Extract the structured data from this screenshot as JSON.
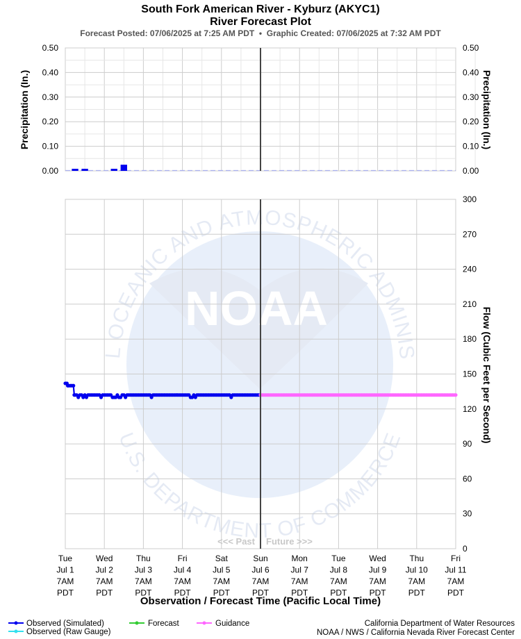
{
  "header": {
    "title_line1": "South Fork American River - Kyburz (AKYC1)",
    "title_line2": "River Forecast Plot",
    "subtitle": "Forecast Posted: 07/06/2025 at 7:25 AM PDT  •  Graphic Created: 07/06/2025 at 7:32 AM PDT"
  },
  "watermark": {
    "logo_text": "NOAA",
    "ring_top": "NATIONAL OCEANIC AND ATMOSPHERIC ADMINISTRATION",
    "ring_bottom": "U.S. DEPARTMENT OF COMMERCE"
  },
  "past_future": {
    "past": "<<< Past",
    "future": "Future >>>"
  },
  "legend": {
    "observed_simulated": "Observed (Simulated)",
    "observed_raw": "Observed (Raw Gauge)",
    "forecast": "Forecast",
    "guidance": "Guidance"
  },
  "credits": {
    "line1": "California Department of Water Resources",
    "line2": "NOAA / NWS / California Nevada River Forecast Center"
  },
  "colors": {
    "observed_simulated": "#0000ee",
    "observed_raw": "#33e0ee",
    "forecast": "#33cc33",
    "guidance": "#ff66ff",
    "now_line": "#444444",
    "grid": "#cccccc"
  },
  "chart_data": [
    {
      "type": "bar",
      "name": "precipitation",
      "ylabel_left": "Precipitation (In.)",
      "ylabel_right": "Precipitation (In.)",
      "ylim": [
        0,
        0.5
      ],
      "yticks": [
        "0.50",
        "0.40",
        "0.30",
        "0.20",
        "0.10",
        "0.00"
      ],
      "xlim_hours": [
        0,
        240
      ],
      "now_hours": 120,
      "bars": [
        {
          "start_hours": 4,
          "end_hours": 8,
          "value": 0.005
        },
        {
          "start_hours": 10,
          "end_hours": 14,
          "value": 0.005
        },
        {
          "start_hours": 28,
          "end_hours": 32,
          "value": 0.005
        },
        {
          "start_hours": 34,
          "end_hours": 38,
          "value": 0.025
        }
      ],
      "zero_dash_range_hours": [
        0,
        240
      ]
    },
    {
      "type": "line",
      "name": "flow",
      "ylabel_right": "Flow (Cubic Feet per Second)",
      "xlabel": "Observation / Forecast Time (Pacific Local Time)",
      "ylim": [
        0,
        300
      ],
      "yticks": [
        "300",
        "270",
        "240",
        "210",
        "180",
        "150",
        "120",
        "90",
        "60",
        "30",
        "0"
      ],
      "xlim_hours": [
        0,
        240
      ],
      "now_hours": 120,
      "x_tick_labels": [
        [
          "Tue",
          "Jul 1",
          "7AM",
          "PDT"
        ],
        [
          "Wed",
          "Jul 2",
          "7AM",
          "PDT"
        ],
        [
          "Thu",
          "Jul 3",
          "7AM",
          "PDT"
        ],
        [
          "Fri",
          "Jul 4",
          "7AM",
          "PDT"
        ],
        [
          "Sat",
          "Jul 5",
          "7AM",
          "PDT"
        ],
        [
          "Sun",
          "Jul 6",
          "7AM",
          "PDT"
        ],
        [
          "Mon",
          "Jul 7",
          "7AM",
          "PDT"
        ],
        [
          "Tue",
          "Jul 8",
          "7AM",
          "PDT"
        ],
        [
          "Wed",
          "Jul 9",
          "7AM",
          "PDT"
        ],
        [
          "Thu",
          "Jul 10",
          "7AM",
          "PDT"
        ],
        [
          "Fri",
          "Jul 11",
          "7AM",
          "PDT"
        ]
      ],
      "series": [
        {
          "name": "Observed (Simulated)",
          "points": [
            [
              0,
              142
            ],
            [
              1,
              142
            ],
            [
              1.5,
              140
            ],
            [
              2,
              140
            ],
            [
              3,
              140
            ],
            [
              4,
              140
            ],
            [
              5,
              140
            ],
            [
              5.5,
              132
            ],
            [
              6,
              132
            ],
            [
              7,
              132
            ],
            [
              8,
              130
            ],
            [
              9,
              132
            ],
            [
              10,
              132
            ],
            [
              11,
              130
            ],
            [
              12,
              132
            ],
            [
              13,
              130
            ],
            [
              14,
              132
            ],
            [
              15,
              132
            ],
            [
              16,
              132
            ],
            [
              17,
              132
            ],
            [
              18,
              132
            ],
            [
              19,
              132
            ],
            [
              20,
              132
            ],
            [
              21,
              132
            ],
            [
              22,
              130
            ],
            [
              23,
              132
            ],
            [
              24,
              132
            ],
            [
              25,
              132
            ],
            [
              26,
              132
            ],
            [
              27,
              132
            ],
            [
              28,
              132
            ],
            [
              29,
              130
            ],
            [
              30,
              130
            ],
            [
              31,
              130
            ],
            [
              32,
              132
            ],
            [
              33,
              130
            ],
            [
              34,
              130
            ],
            [
              35,
              132
            ],
            [
              36,
              132
            ],
            [
              37,
              130
            ],
            [
              38,
              132
            ],
            [
              39,
              132
            ],
            [
              40,
              132
            ],
            [
              41,
              132
            ],
            [
              42,
              132
            ],
            [
              43,
              132
            ],
            [
              44,
              132
            ],
            [
              45,
              132
            ],
            [
              46,
              132
            ],
            [
              47,
              132
            ],
            [
              48,
              132
            ],
            [
              49,
              132
            ],
            [
              50,
              132
            ],
            [
              51,
              132
            ],
            [
              52,
              132
            ],
            [
              53,
              130
            ],
            [
              54,
              132
            ],
            [
              55,
              132
            ],
            [
              56,
              132
            ],
            [
              57,
              132
            ],
            [
              58,
              132
            ],
            [
              59,
              132
            ],
            [
              60,
              132
            ],
            [
              61,
              132
            ],
            [
              62,
              132
            ],
            [
              63,
              132
            ],
            [
              64,
              132
            ],
            [
              65,
              132
            ],
            [
              66,
              132
            ],
            [
              67,
              132
            ],
            [
              68,
              132
            ],
            [
              69,
              132
            ],
            [
              70,
              132
            ],
            [
              71,
              132
            ],
            [
              72,
              132
            ],
            [
              73,
              132
            ],
            [
              74,
              132
            ],
            [
              75,
              132
            ],
            [
              76,
              132
            ],
            [
              77,
              130
            ],
            [
              78,
              130
            ],
            [
              79,
              132
            ],
            [
              80,
              130
            ],
            [
              81,
              132
            ],
            [
              82,
              132
            ],
            [
              83,
              132
            ],
            [
              84,
              132
            ],
            [
              85,
              132
            ],
            [
              86,
              132
            ],
            [
              87,
              132
            ],
            [
              88,
              132
            ],
            [
              89,
              132
            ],
            [
              90,
              132
            ],
            [
              91,
              132
            ],
            [
              92,
              132
            ],
            [
              93,
              132
            ],
            [
              94,
              132
            ],
            [
              95,
              132
            ],
            [
              96,
              132
            ],
            [
              97,
              132
            ],
            [
              98,
              132
            ],
            [
              99,
              132
            ],
            [
              100,
              132
            ],
            [
              101,
              132
            ],
            [
              102,
              130
            ],
            [
              103,
              132
            ],
            [
              104,
              132
            ],
            [
              105,
              132
            ],
            [
              106,
              132
            ],
            [
              107,
              132
            ],
            [
              108,
              132
            ],
            [
              109,
              132
            ],
            [
              110,
              132
            ],
            [
              111,
              132
            ],
            [
              112,
              132
            ],
            [
              113,
              132
            ],
            [
              114,
              132
            ],
            [
              115,
              132
            ],
            [
              116,
              132
            ],
            [
              117,
              132
            ],
            [
              118,
              132
            ],
            [
              119,
              132
            ],
            [
              120,
              132
            ]
          ]
        },
        {
          "name": "Guidance",
          "x_start_hours": 120,
          "x_end_hours": 240,
          "step_hours": 1,
          "value": 132
        }
      ]
    }
  ]
}
